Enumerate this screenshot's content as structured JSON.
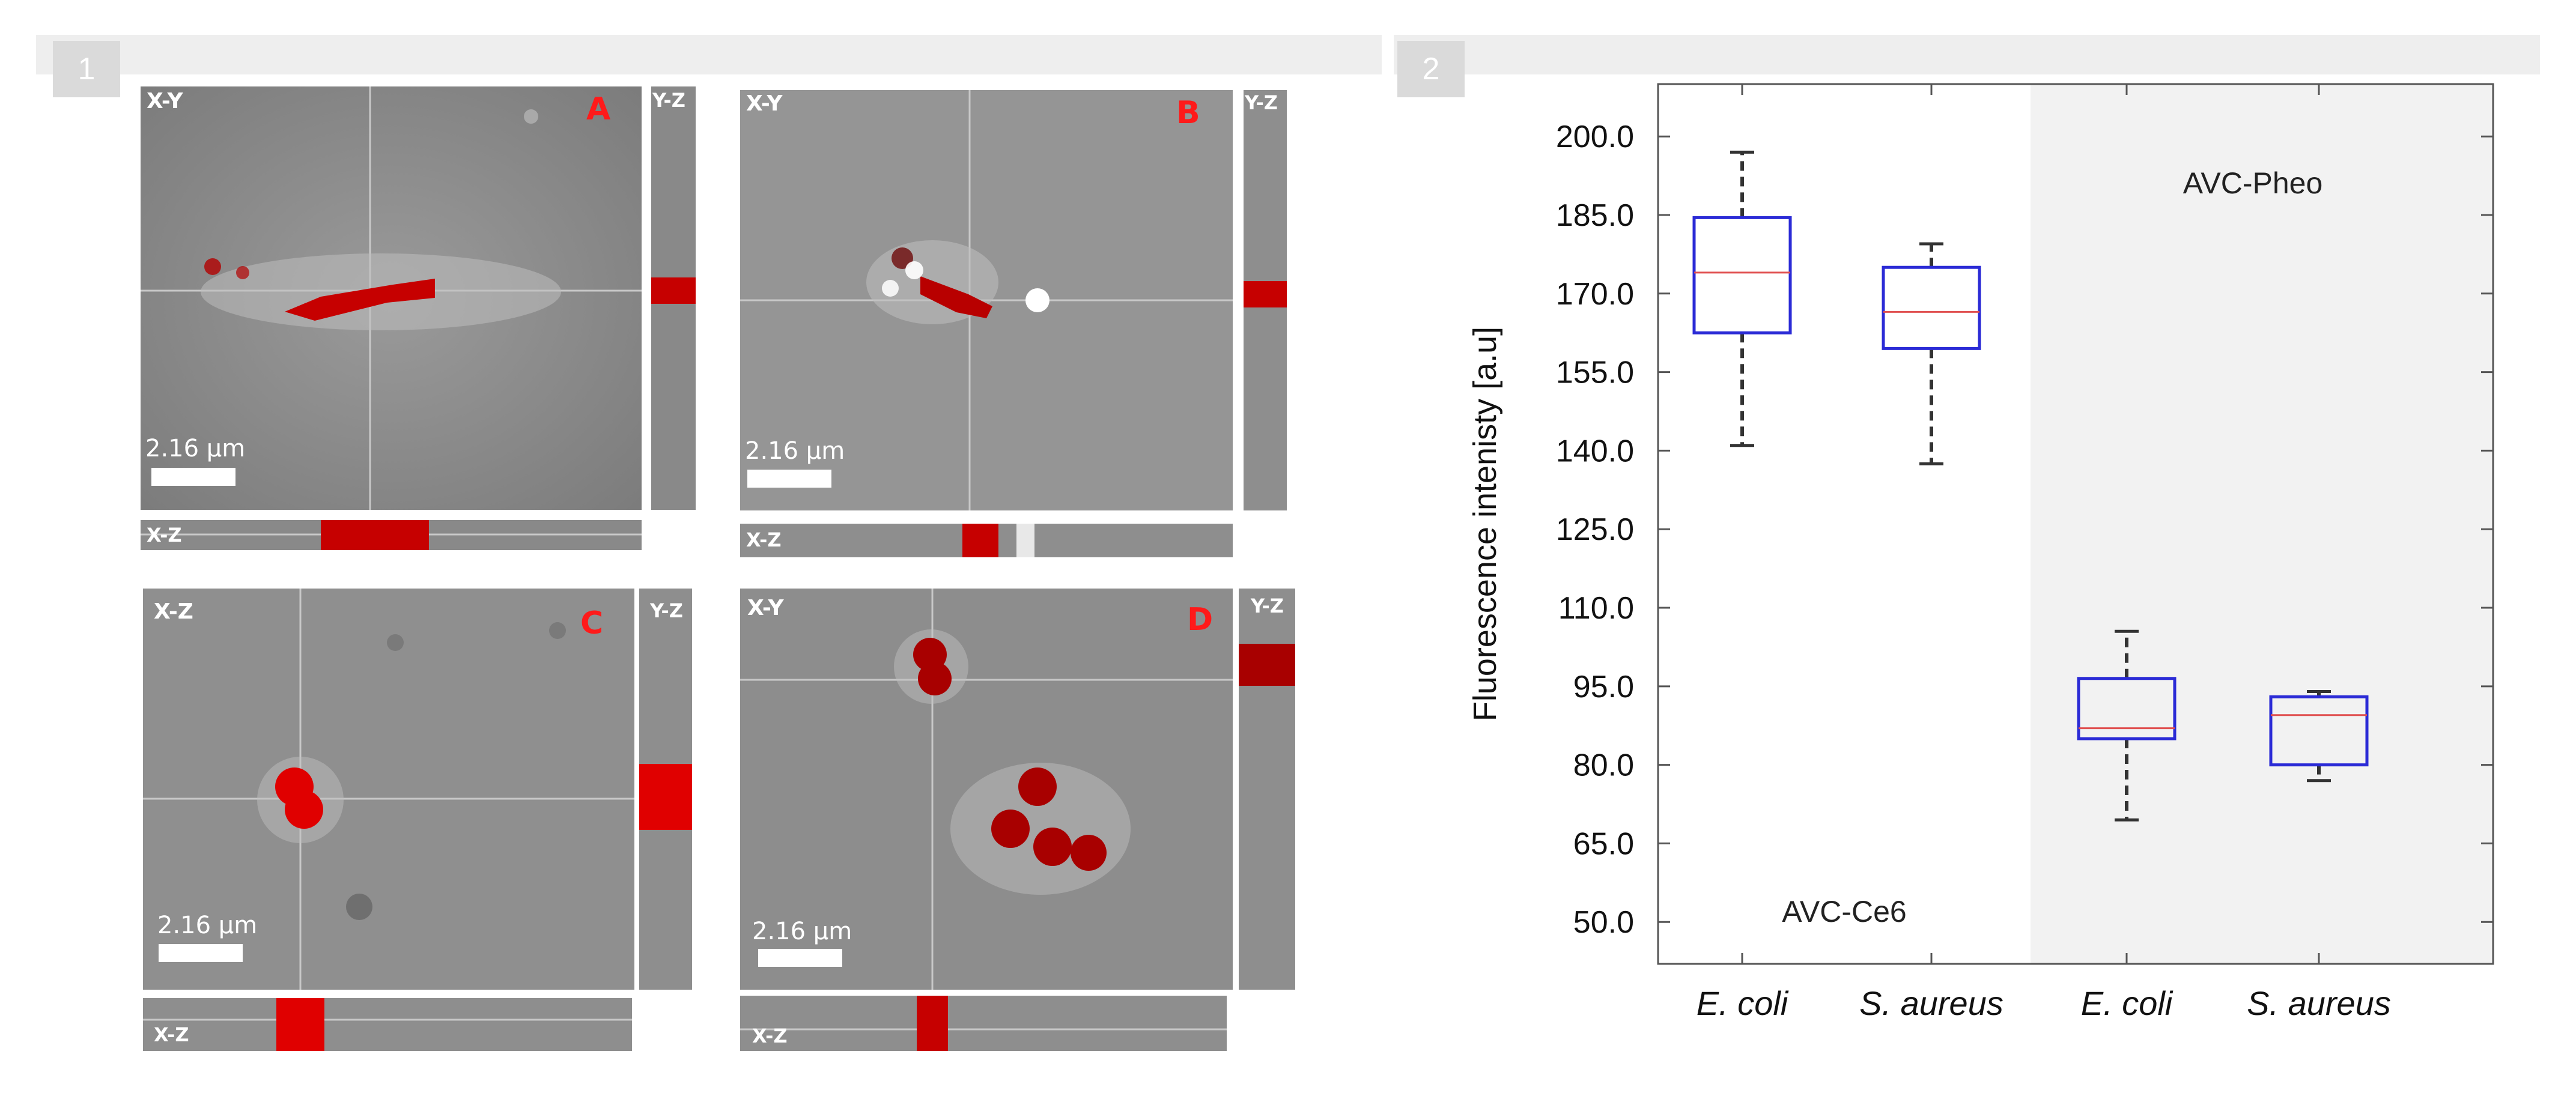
{
  "panel_numbers": [
    "1",
    "2"
  ],
  "micrographs": [
    {
      "letter": "A",
      "main_label": "X-Y",
      "side_label": "Y-Z",
      "bottom_label": "X-Z",
      "scale_text": "2.16 µm"
    },
    {
      "letter": "B",
      "main_label": "X-Y",
      "side_label": "Y-Z",
      "bottom_label": "X-Z",
      "scale_text": "2.16 µm"
    },
    {
      "letter": "C",
      "main_label": "X-Z",
      "side_label": "Y-Z",
      "bottom_label": "X-Z",
      "scale_text": "2.16 µm"
    },
    {
      "letter": "D",
      "main_label": "X-Y",
      "side_label": "Y-Z",
      "bottom_label": "X-Z",
      "scale_text": "2.16 µm"
    }
  ],
  "colors": {
    "box_edge": "#2b2bd6",
    "median": "#e05050",
    "whisker": "#333333",
    "shaded_region": "#f2f2f2",
    "cell_red": "#d40000"
  },
  "chart_data": {
    "type": "box",
    "ylabel": "Fluorescence intenisty [a.u]",
    "ylim": [
      42,
      210
    ],
    "ytick_labels": [
      "200.0",
      "185.0",
      "170.0",
      "155.0",
      "140.0",
      "125.0",
      "110.0",
      "95.0",
      "80.0",
      "65.0",
      "50.0"
    ],
    "yticks": [
      200,
      185,
      170,
      155,
      140,
      125,
      110,
      95,
      80,
      65,
      50
    ],
    "groups": [
      {
        "name": "AVC-Ce6",
        "shaded": false
      },
      {
        "name": "AVC-Pheo",
        "shaded": true
      }
    ],
    "categories": [
      "E. coli",
      "S. aureus",
      "E. coli",
      "S. aureus"
    ],
    "boxes": [
      {
        "category": "E. coli",
        "group": "AVC-Ce6",
        "min": 141,
        "q1": 162.5,
        "median": 174,
        "q3": 184.5,
        "max": 197
      },
      {
        "category": "S. aureus",
        "group": "AVC-Ce6",
        "min": 137.5,
        "q1": 159.5,
        "median": 166.5,
        "q3": 175,
        "max": 179.5
      },
      {
        "category": "E. coli",
        "group": "AVC-Pheo",
        "min": 69.5,
        "q1": 85,
        "median": 87,
        "q3": 96.5,
        "max": 105.5
      },
      {
        "category": "S. aureus",
        "group": "AVC-Pheo",
        "min": 77,
        "q1": 80,
        "median": 89.5,
        "q3": 93,
        "max": 94
      }
    ]
  }
}
